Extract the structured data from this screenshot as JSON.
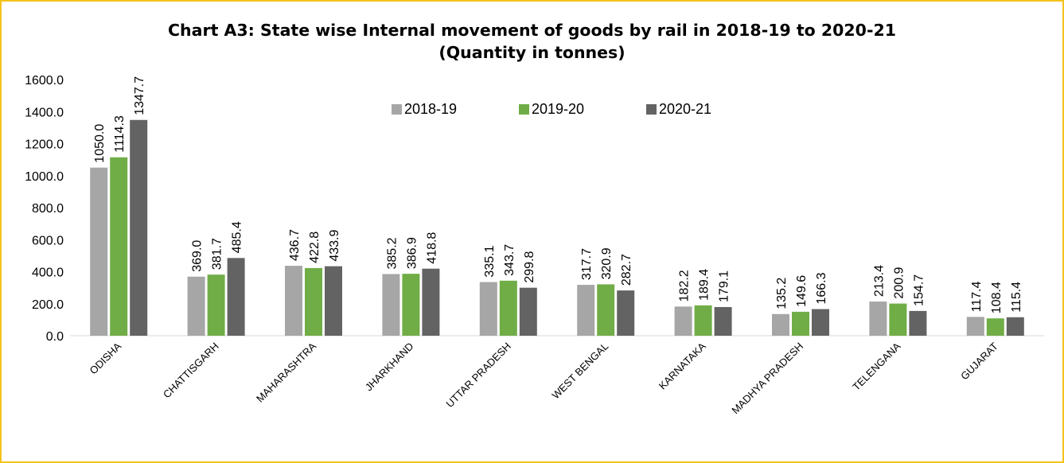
{
  "chart_data": {
    "type": "bar",
    "title": "Chart A3: State wise Internal movement of goods by rail in 2018-19 to 2020-21",
    "subtitle": "(Quantity in tonnes)",
    "categories": [
      "ODISHA",
      "CHATTISGARH",
      "MAHARASHTRA",
      "JHARKHAND",
      "UTTAR PRADESH",
      "WEST BENGAL",
      "KARNATAKA",
      "MADHYA PRADESH",
      "TELENGANA",
      "GUJARAT"
    ],
    "series": [
      {
        "name": "2018-19",
        "color": "#a6a6a6",
        "values": [
          1050.0,
          369.0,
          436.7,
          385.2,
          335.1,
          317.7,
          182.2,
          135.2,
          213.4,
          117.4
        ]
      },
      {
        "name": "2019-20",
        "color": "#70ad47",
        "values": [
          1114.3,
          381.7,
          422.8,
          386.9,
          343.7,
          320.9,
          189.4,
          149.6,
          200.9,
          108.4
        ]
      },
      {
        "name": "2020-21",
        "color": "#636363",
        "values": [
          1347.7,
          485.4,
          433.9,
          418.8,
          299.8,
          282.7,
          179.1,
          166.3,
          154.7,
          115.4
        ]
      }
    ],
    "y_ticks": [
      "0.0",
      "200.0",
      "400.0",
      "600.0",
      "800.0",
      "1000.0",
      "1200.0",
      "1400.0",
      "1600.0"
    ],
    "ylim": [
      0,
      1600
    ],
    "grid": false,
    "legend": "top-center",
    "data_labels": true
  }
}
